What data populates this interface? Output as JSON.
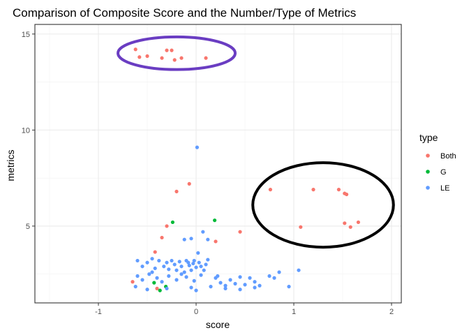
{
  "chart_data": {
    "type": "scatter",
    "title": "Comparison of Composite Score and the Number/Type of Metrics",
    "xlabel": "score",
    "ylabel": "metrics",
    "xlim": [
      -1.65,
      2.1
    ],
    "ylim": [
      1.0,
      15.5
    ],
    "x_ticks": [
      -1,
      0,
      1,
      2
    ],
    "y_ticks": [
      5,
      10,
      15
    ],
    "grid": true,
    "legend": {
      "title": "type",
      "placement": "right"
    },
    "series": [
      {
        "name": "Both",
        "color": "#F8766D",
        "points": [
          [
            -0.62,
            14.2
          ],
          [
            -0.58,
            13.8
          ],
          [
            -0.5,
            13.85
          ],
          [
            -0.35,
            13.75
          ],
          [
            -0.3,
            14.15
          ],
          [
            -0.25,
            14.15
          ],
          [
            -0.22,
            13.65
          ],
          [
            -0.15,
            13.75
          ],
          [
            0.1,
            13.75
          ],
          [
            -0.2,
            6.8
          ],
          [
            -0.07,
            7.2
          ],
          [
            -0.3,
            5.0
          ],
          [
            -0.35,
            4.4
          ],
          [
            -0.42,
            3.65
          ],
          [
            0.2,
            4.2
          ],
          [
            0.45,
            4.7
          ],
          [
            -0.65,
            2.1
          ],
          [
            -0.4,
            1.75
          ],
          [
            0.76,
            6.9
          ],
          [
            1.2,
            6.9
          ],
          [
            1.46,
            6.9
          ],
          [
            1.52,
            6.7
          ],
          [
            1.54,
            6.65
          ],
          [
            1.07,
            4.95
          ],
          [
            1.52,
            5.15
          ],
          [
            1.58,
            4.95
          ],
          [
            1.66,
            5.2
          ]
        ]
      },
      {
        "name": "G",
        "color": "#00BA38",
        "points": [
          [
            -0.24,
            5.2
          ],
          [
            0.19,
            5.3
          ],
          [
            -0.43,
            2.05
          ],
          [
            -0.31,
            1.85
          ],
          [
            -0.37,
            1.65
          ]
        ]
      },
      {
        "name": "LE",
        "color": "#619CFF",
        "points": [
          [
            0.01,
            9.1
          ],
          [
            0.07,
            4.7
          ],
          [
            -0.12,
            4.3
          ],
          [
            -0.05,
            4.35
          ],
          [
            0.12,
            4.3
          ],
          [
            0.02,
            3.6
          ],
          [
            -0.02,
            3.2
          ],
          [
            0.12,
            3.25
          ],
          [
            -0.08,
            3.1
          ],
          [
            -0.6,
            3.2
          ],
          [
            -0.55,
            2.9
          ],
          [
            -0.5,
            3.1
          ],
          [
            -0.45,
            3.3
          ],
          [
            -0.42,
            2.8
          ],
          [
            -0.38,
            3.2
          ],
          [
            -0.33,
            2.9
          ],
          [
            -0.3,
            3.1
          ],
          [
            -0.28,
            2.75
          ],
          [
            -0.25,
            3.2
          ],
          [
            -0.22,
            3.0
          ],
          [
            -0.2,
            2.7
          ],
          [
            -0.17,
            3.15
          ],
          [
            -0.15,
            2.9
          ],
          [
            -0.12,
            2.6
          ],
          [
            -0.1,
            3.2
          ],
          [
            -0.07,
            2.95
          ],
          [
            -0.05,
            2.7
          ],
          [
            -0.03,
            3.05
          ],
          [
            0.0,
            2.85
          ],
          [
            0.03,
            3.1
          ],
          [
            0.05,
            2.9
          ],
          [
            0.08,
            2.7
          ],
          [
            0.1,
            3.0
          ],
          [
            -0.6,
            2.4
          ],
          [
            -0.55,
            2.2
          ],
          [
            -0.48,
            2.5
          ],
          [
            -0.4,
            2.3
          ],
          [
            -0.35,
            2.1
          ],
          [
            -0.28,
            2.4
          ],
          [
            -0.2,
            2.2
          ],
          [
            -0.1,
            2.35
          ],
          [
            -0.02,
            2.15
          ],
          [
            0.05,
            2.45
          ],
          [
            -0.62,
            1.85
          ],
          [
            -0.5,
            1.7
          ],
          [
            -0.3,
            1.75
          ],
          [
            -0.05,
            1.8
          ],
          [
            0.0,
            1.65
          ],
          [
            0.2,
            2.3
          ],
          [
            0.25,
            2.05
          ],
          [
            0.3,
            1.9
          ],
          [
            0.35,
            2.2
          ],
          [
            0.4,
            2.0
          ],
          [
            0.45,
            2.35
          ],
          [
            0.5,
            1.95
          ],
          [
            0.55,
            2.3
          ],
          [
            0.6,
            2.1
          ],
          [
            0.65,
            1.9
          ],
          [
            0.75,
            2.4
          ],
          [
            0.8,
            2.3
          ],
          [
            0.85,
            2.6
          ],
          [
            0.95,
            1.85
          ],
          [
            1.05,
            2.7
          ],
          [
            0.3,
            1.75
          ],
          [
            0.45,
            1.7
          ],
          [
            0.6,
            1.8
          ],
          [
            0.15,
            1.85
          ],
          [
            0.22,
            2.4
          ],
          [
            -0.45,
            2.6
          ],
          [
            -0.15,
            2.5
          ]
        ]
      }
    ],
    "annotations": [
      {
        "shape": "ellipse",
        "color": "#6A3DC2",
        "cx": -0.2,
        "cy": 14.0,
        "rx": 0.6,
        "ry": 0.85
      },
      {
        "shape": "ellipse",
        "color": "#000000",
        "cx": 1.3,
        "cy": 6.1,
        "rx": 0.72,
        "ry": 2.2
      }
    ]
  }
}
